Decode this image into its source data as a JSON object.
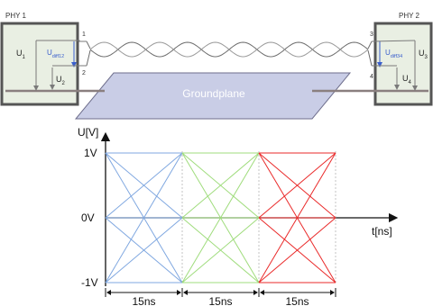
{
  "diagram": {
    "phy1": {
      "label": "PHY 1",
      "u1_main": "U",
      "u1_sub": "1",
      "u2_main": "U",
      "u2_sub": "2",
      "udiff_main": "U",
      "udiff_sub": "diff12",
      "pin_top": "1",
      "pin_bottom": "2"
    },
    "phy2": {
      "label": "PHY 2",
      "u3_main": "U",
      "u3_sub": "3",
      "u4_main": "U",
      "u4_sub": "4",
      "udiff_main": "U",
      "udiff_sub": "diff34",
      "pin_top": "3",
      "pin_bottom": "4"
    },
    "groundplane_label": "Groundplane",
    "colors": {
      "box_fill": "#e9efe3",
      "groundplane_fill": "#c9cde6",
      "groundplane_stroke": "#6e6e8c",
      "udiff": "#3a5fcd"
    }
  },
  "chart_data": {
    "type": "line",
    "ylabel": "U[V]",
    "xlabel": "t[ns]",
    "y_ticks": [
      "1V",
      "0V",
      "-1V"
    ],
    "ylim": [
      -1,
      1
    ],
    "segments": [
      {
        "label": "15ns",
        "color": "#7fa7e0",
        "levels": [
          -1,
          0,
          1
        ]
      },
      {
        "label": "15ns",
        "color": "#9fdc7c",
        "levels": [
          -1,
          0,
          1
        ]
      },
      {
        "label": "15ns",
        "color": "#ea2a2a",
        "levels": [
          -1,
          0,
          1
        ]
      }
    ]
  }
}
